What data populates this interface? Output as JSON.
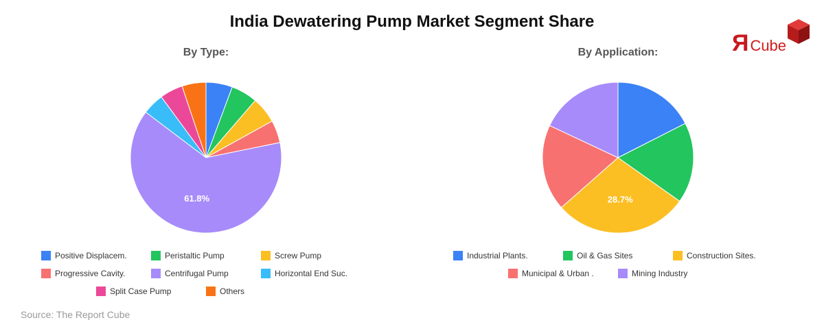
{
  "title": "India Dewatering Pump Market Segment Share",
  "source": "Source: The Report Cube",
  "logo": {
    "mark": "Я",
    "text": "Cube"
  },
  "chart_data": [
    {
      "type": "pie",
      "title": "By Type:",
      "labels": [
        "Positive Displacem.",
        "Peristaltic Pump",
        "Screw Pump",
        "Progressive Cavity.",
        "Centrifugal Pump",
        "Horizontal End Suc.",
        "Split Case Pump",
        "Others"
      ],
      "values": [
        5.5,
        5.5,
        5.5,
        4.7,
        61.8,
        4.5,
        4.8,
        5.0
      ],
      "colors": [
        "#3b82f6",
        "#22c55e",
        "#fbbf24",
        "#f87171",
        "#a78bfa",
        "#38bdf8",
        "#ec4899",
        "#f97316"
      ],
      "data_labels": [
        "",
        "",
        "",
        "",
        "61.8%",
        "",
        "",
        ""
      ],
      "legend": "bottom"
    },
    {
      "type": "pie",
      "title": "By Application:",
      "labels": [
        "Industrial Plants.",
        "Oil & Gas Sites",
        "Construction Sites.",
        "Municipal & Urban .",
        "Mining Industry"
      ],
      "values": [
        17.5,
        17.3,
        28.7,
        18.5,
        18.0
      ],
      "colors": [
        "#3b82f6",
        "#22c55e",
        "#fbbf24",
        "#f87171",
        "#a78bfa"
      ],
      "data_labels": [
        "",
        "",
        "28.7%",
        "",
        ""
      ],
      "legend": "bottom"
    }
  ]
}
